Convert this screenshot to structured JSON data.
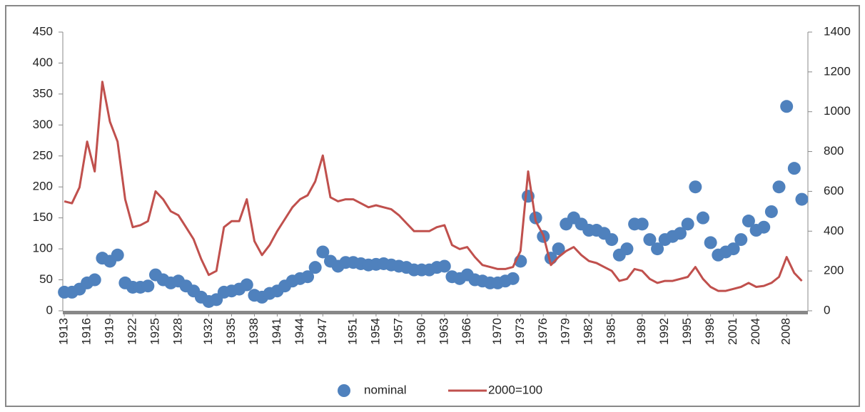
{
  "chart_data": {
    "type": "scatter-line",
    "x": [
      1913,
      1914,
      1915,
      1916,
      1917,
      1918,
      1919,
      1920,
      1921,
      1922,
      1923,
      1924,
      1925,
      1926,
      1927,
      1928,
      1929,
      1930,
      1931,
      1932,
      1933,
      1934,
      1935,
      1936,
      1937,
      1938,
      1939,
      1940,
      1941,
      1942,
      1943,
      1944,
      1945,
      1946,
      1947,
      1948,
      1949,
      1950,
      1951,
      1952,
      1953,
      1954,
      1955,
      1956,
      1957,
      1958,
      1959,
      1960,
      1961,
      1962,
      1963,
      1964,
      1965,
      1966,
      1967,
      1968,
      1969,
      1970,
      1971,
      1972,
      1973,
      1974,
      1975,
      1976,
      1977,
      1978,
      1979,
      1980,
      1981,
      1982,
      1983,
      1984,
      1985,
      1986,
      1987,
      1988,
      1989,
      1990,
      1991,
      1992,
      1993,
      1994,
      1995,
      1996,
      1997,
      1998,
      1999,
      2000,
      2001,
      2002,
      2003,
      2004,
      2005,
      2006,
      2007,
      2008,
      2009,
      2010
    ],
    "series": [
      {
        "name": "nominal",
        "color": "#4f81bd",
        "axis": "y",
        "values": [
          30,
          30,
          35,
          45,
          50,
          85,
          80,
          90,
          45,
          38,
          38,
          40,
          58,
          50,
          45,
          48,
          40,
          32,
          22,
          15,
          18,
          30,
          32,
          35,
          42,
          25,
          22,
          28,
          32,
          40,
          48,
          52,
          55,
          70,
          95,
          80,
          72,
          78,
          78,
          76,
          74,
          75,
          76,
          74,
          72,
          70,
          66,
          66,
          66,
          70,
          72,
          55,
          52,
          58,
          50,
          48,
          45,
          45,
          48,
          52,
          80,
          185,
          150,
          120,
          85,
          100,
          140,
          150,
          140,
          130,
          130,
          125,
          115,
          90,
          100,
          140,
          140,
          115,
          100,
          115,
          120,
          125,
          140,
          200,
          150,
          110,
          90,
          95,
          100,
          115,
          145,
          130,
          135,
          160,
          200,
          330,
          230,
          180
        ]
      },
      {
        "name": "2000=100",
        "color": "#c0504d",
        "axis": "y2",
        "values": [
          550,
          540,
          620,
          850,
          700,
          1150,
          950,
          850,
          560,
          420,
          430,
          450,
          600,
          560,
          500,
          480,
          420,
          360,
          260,
          180,
          200,
          420,
          450,
          450,
          560,
          350,
          280,
          330,
          400,
          460,
          520,
          560,
          580,
          650,
          780,
          570,
          550,
          560,
          560,
          540,
          520,
          530,
          520,
          510,
          480,
          440,
          400,
          400,
          400,
          420,
          430,
          330,
          310,
          320,
          270,
          230,
          220,
          210,
          210,
          220,
          300,
          700,
          450,
          380,
          230,
          270,
          300,
          320,
          280,
          250,
          240,
          220,
          200,
          150,
          160,
          210,
          200,
          160,
          140,
          150,
          150,
          160,
          170,
          220,
          160,
          120,
          100,
          100,
          110,
          120,
          140,
          120,
          125,
          140,
          170,
          270,
          190,
          150
        ]
      }
    ],
    "xlim": [
      1912.8,
      2010.8
    ],
    "xticks": [
      1913,
      1916,
      1919,
      1922,
      1925,
      1928,
      1932,
      1935,
      1938,
      1941,
      1944,
      1947,
      1951,
      1954,
      1957,
      1960,
      1963,
      1966,
      1970,
      1973,
      1976,
      1979,
      1982,
      1985,
      1989,
      1992,
      1995,
      1998,
      2001,
      2004,
      2008
    ],
    "ylim": [
      0,
      450
    ],
    "yticks": [
      0,
      50,
      100,
      150,
      200,
      250,
      300,
      350,
      400,
      450
    ],
    "y2lim": [
      0,
      1400
    ],
    "y2ticks": [
      0,
      200,
      400,
      600,
      800,
      1000,
      1200,
      1400
    ],
    "legend": "bottom"
  }
}
